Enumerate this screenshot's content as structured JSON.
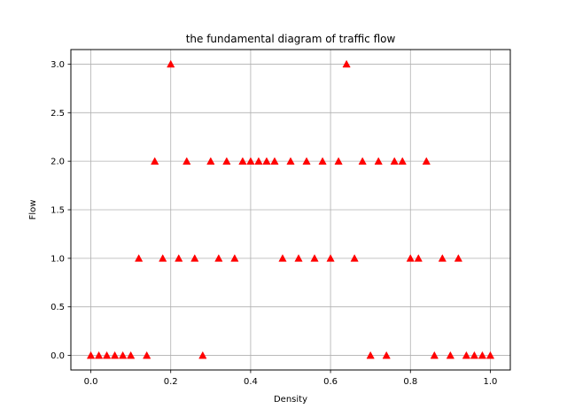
{
  "chart_data": {
    "type": "scatter",
    "title": "the fundamental diagram of traffic flow",
    "xlabel": "Density",
    "ylabel": "Flow",
    "xlim": [
      -0.05,
      1.05
    ],
    "ylim": [
      -0.15,
      3.15
    ],
    "xticks": [
      0.0,
      0.2,
      0.4,
      0.6,
      0.8,
      1.0
    ],
    "xtick_labels": [
      "0.0",
      "0.2",
      "0.4",
      "0.6",
      "0.8",
      "1.0"
    ],
    "yticks": [
      0.0,
      0.5,
      1.0,
      1.5,
      2.0,
      2.5,
      3.0
    ],
    "ytick_labels": [
      "0.0",
      "0.5",
      "1.0",
      "1.5",
      "2.0",
      "2.5",
      "3.0"
    ],
    "grid": true,
    "marker": "triangle-up",
    "marker_color": "#ff0000",
    "series": [
      {
        "x": [
          0.0,
          0.02,
          0.04,
          0.06,
          0.08,
          0.1,
          0.12,
          0.14,
          0.16,
          0.18,
          0.2,
          0.22,
          0.24,
          0.26,
          0.28,
          0.3,
          0.32,
          0.34,
          0.36,
          0.38,
          0.4,
          0.42,
          0.44,
          0.46,
          0.48,
          0.5,
          0.52,
          0.54,
          0.56,
          0.58,
          0.6,
          0.62,
          0.64,
          0.66,
          0.68,
          0.7,
          0.72,
          0.74,
          0.76,
          0.78,
          0.8,
          0.82,
          0.84,
          0.86,
          0.88,
          0.9,
          0.92,
          0.94,
          0.96,
          0.98,
          1.0
        ],
        "y": [
          0,
          0,
          0,
          0,
          0,
          0,
          1,
          0,
          2,
          1,
          3,
          1,
          2,
          1,
          0,
          2,
          1,
          2,
          1,
          2,
          2,
          2,
          2,
          2,
          1,
          2,
          1,
          2,
          1,
          2,
          1,
          2,
          3,
          1,
          2,
          0,
          2,
          0,
          2,
          2,
          1,
          1,
          2,
          0,
          1,
          0,
          1,
          0,
          0,
          0,
          0
        ]
      }
    ]
  }
}
